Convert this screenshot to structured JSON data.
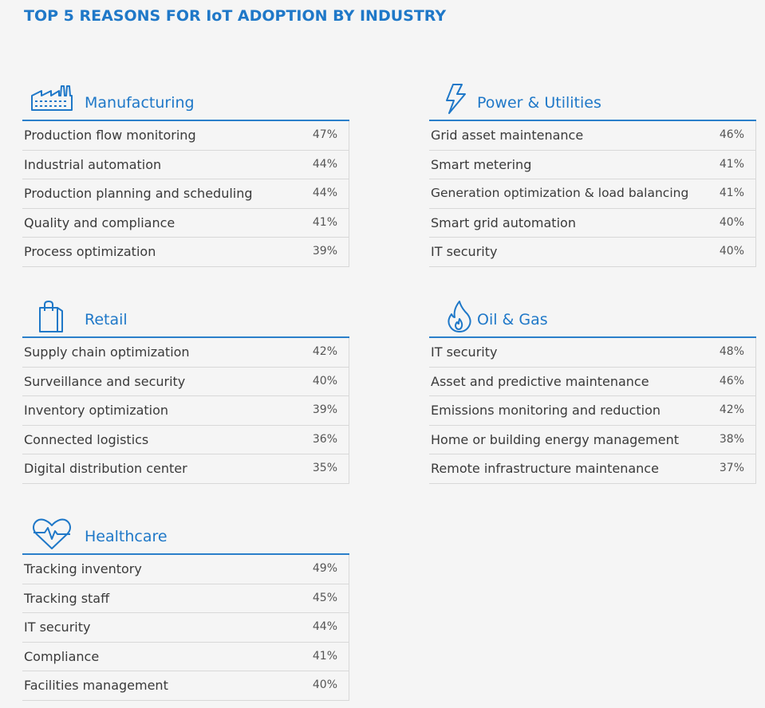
{
  "title": "TOP 5 REASONS FOR IoT ADOPTION BY INDUSTRY",
  "colors": {
    "accent": "#1f78c8",
    "rule": "#2a7fca",
    "divider": "#d8d8d8"
  },
  "industries": [
    {
      "name": "Manufacturing",
      "icon": "factory-icon",
      "items": [
        {
          "label": "Production flow monitoring",
          "pct": "47%"
        },
        {
          "label": "Industrial automation",
          "pct": "44%"
        },
        {
          "label": "Production planning and scheduling",
          "pct": "44%"
        },
        {
          "label": "Quality and compliance",
          "pct": "41%"
        },
        {
          "label": "Process optimization",
          "pct": "39%"
        }
      ]
    },
    {
      "name": "Power & Utilities",
      "icon": "lightning-bolt-icon",
      "items": [
        {
          "label": "Grid asset maintenance",
          "pct": "46%"
        },
        {
          "label": "Smart metering",
          "pct": "41%"
        },
        {
          "label": "Generation optimization & load balancing",
          "pct": "41%"
        },
        {
          "label": "Smart grid automation",
          "pct": "40%"
        },
        {
          "label": "IT security",
          "pct": "40%"
        }
      ]
    },
    {
      "name": "Retail",
      "icon": "shopping-bag-icon",
      "items": [
        {
          "label": "Supply chain optimization",
          "pct": "42%"
        },
        {
          "label": "Surveillance and security",
          "pct": "40%"
        },
        {
          "label": "Inventory optimization",
          "pct": "39%"
        },
        {
          "label": "Connected logistics",
          "pct": "36%"
        },
        {
          "label": "Digital distribution center",
          "pct": "35%"
        }
      ]
    },
    {
      "name": "Oil & Gas",
      "icon": "flame-icon",
      "items": [
        {
          "label": "IT security",
          "pct": "48%"
        },
        {
          "label": "Asset and predictive maintenance",
          "pct": "46%"
        },
        {
          "label": "Emissions monitoring and reduction",
          "pct": "42%"
        },
        {
          "label": "Home or building energy management",
          "pct": "38%"
        },
        {
          "label": "Remote infrastructure maintenance",
          "pct": "37%"
        }
      ]
    },
    {
      "name": "Healthcare",
      "icon": "heart-pulse-icon",
      "items": [
        {
          "label": "Tracking inventory",
          "pct": "49%"
        },
        {
          "label": "Tracking staff",
          "pct": "45%"
        },
        {
          "label": "IT security",
          "pct": "44%"
        },
        {
          "label": "Compliance",
          "pct": "41%"
        },
        {
          "label": "Facilities management",
          "pct": "40%"
        }
      ]
    }
  ]
}
